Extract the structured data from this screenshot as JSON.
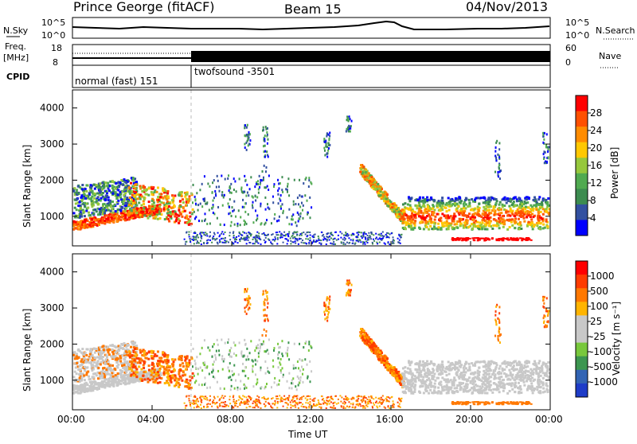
{
  "header": {
    "title": "Prince George (fitACF)",
    "beam": "Beam 15",
    "date": "04/Nov/2013"
  },
  "noise_panel": {
    "left_label": "N.Sky",
    "right_label": "N.Search",
    "ticks_left": [
      "10^5",
      "10^0"
    ],
    "ticks_right": [
      "10^5",
      "10^0"
    ]
  },
  "freq_panel": {
    "left_label_1": "Freq.",
    "left_label_2": "[MHz]",
    "left_ticks": [
      "18",
      "8"
    ],
    "right_label": "Nave",
    "right_ticks": [
      "60",
      "0"
    ]
  },
  "cpid_panel": {
    "label": "CPID",
    "mode_1": "normal (fast) 151",
    "mode_2": "twofsound -3501"
  },
  "power_panel": {
    "ylabel": "Slant Range [km]",
    "yticks": [
      "4000",
      "3000",
      "2000",
      "1000"
    ],
    "colorbar_label": "Power [dB]",
    "colorbar_ticks": [
      "28",
      "24",
      "20",
      "16",
      "12",
      "8",
      "4"
    ],
    "colors": [
      "#0000ff",
      "#3250a0",
      "#3c8c50",
      "#50aa50",
      "#96c83c",
      "#ffc800",
      "#ff8c00",
      "#ff5000",
      "#ff0000"
    ]
  },
  "velocity_panel": {
    "ylabel": "Slant Range [km]",
    "yticks": [
      "4000",
      "3000",
      "2000",
      "1000"
    ],
    "colorbar_label": "Velocity [m s⁻¹]",
    "colorbar_ticks": [
      "1000",
      "500",
      "100",
      "25",
      "-25",
      "-100",
      "-500",
      "-1000"
    ],
    "colors": [
      "#1e3cc8",
      "#3264b4",
      "#3c9650",
      "#78c83c",
      "#c8c8c8",
      "#c8c8c8",
      "#ffb400",
      "#ff7800",
      "#ff3c00",
      "#ff0000"
    ]
  },
  "x_axis": {
    "xlabel": "Time UT",
    "ticks": [
      "00:00",
      "04:00",
      "08:00",
      "12:00",
      "16:00",
      "20:00",
      "00:00"
    ]
  },
  "chart_data": {
    "type": "heatmap",
    "title": "Prince George (fitACF)",
    "x_range_hours": [
      0,
      24
    ],
    "y_range_km": [
      180,
      4500
    ],
    "xlabel": "Time UT",
    "ylabel": "Slant Range [km]",
    "grid": false,
    "panels": [
      "noise",
      "frequency",
      "cpid",
      "power",
      "velocity"
    ],
    "mode_change_hour": 6.0,
    "power_ticks_db": [
      4,
      8,
      12,
      16,
      20,
      24,
      28
    ],
    "velocity_ticks_ms": [
      -1000,
      -500,
      -100,
      -25,
      25,
      100,
      500,
      1000
    ],
    "echo_regions": [
      {
        "t": [
          0.0,
          4.5
        ],
        "r_km": [
          600,
          900
        ],
        "power": "high",
        "velocity": "near-zero"
      },
      {
        "t": [
          0.0,
          3.0
        ],
        "r_km": [
          900,
          1800
        ],
        "power": "low-medium",
        "velocity": "mixed"
      },
      {
        "t": [
          3.0,
          6.0
        ],
        "r_km": [
          1000,
          2000
        ],
        "power": "high",
        "velocity": "negative"
      },
      {
        "t": [
          14.5,
          16.5
        ],
        "r_km": [
          800,
          2300
        ],
        "power": "medium-high",
        "velocity": "negative"
      },
      {
        "t": [
          16.5,
          24.0
        ],
        "r_km": [
          600,
          1500
        ],
        "power": "high",
        "velocity": "near-zero"
      }
    ]
  }
}
